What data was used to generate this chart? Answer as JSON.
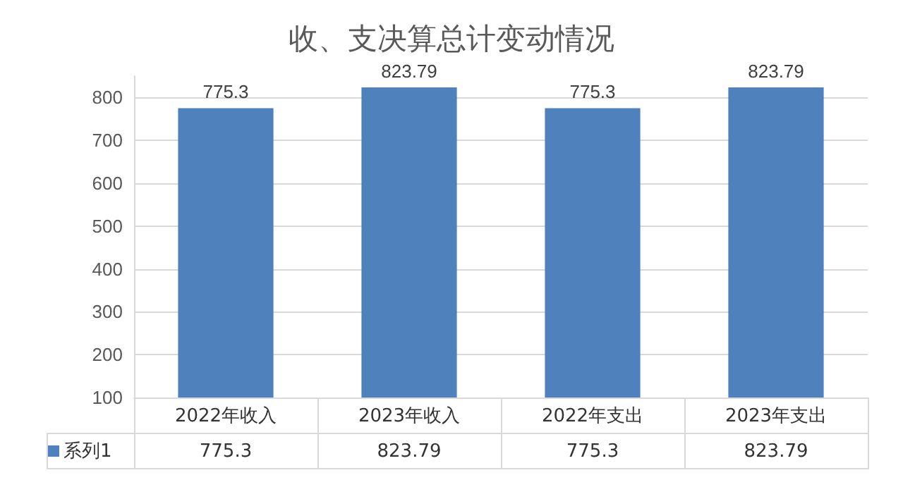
{
  "chart_data": {
    "type": "bar",
    "title": "收、支决算总计变动情况",
    "categories": [
      "2022年收入",
      "2023年收入",
      "2022年支出",
      "2023年支出"
    ],
    "series": [
      {
        "name": "系列1",
        "color": "#4f81bd",
        "values": [
          775.3,
          823.79,
          775.3,
          823.79
        ],
        "value_labels": [
          "775.3",
          "823.79",
          "775.3",
          "823.79"
        ]
      }
    ],
    "ylim": [
      100,
      850
    ],
    "yticks": [
      100,
      200,
      300,
      400,
      500,
      600,
      700,
      800
    ],
    "grid": "y",
    "legend": "bottom"
  }
}
